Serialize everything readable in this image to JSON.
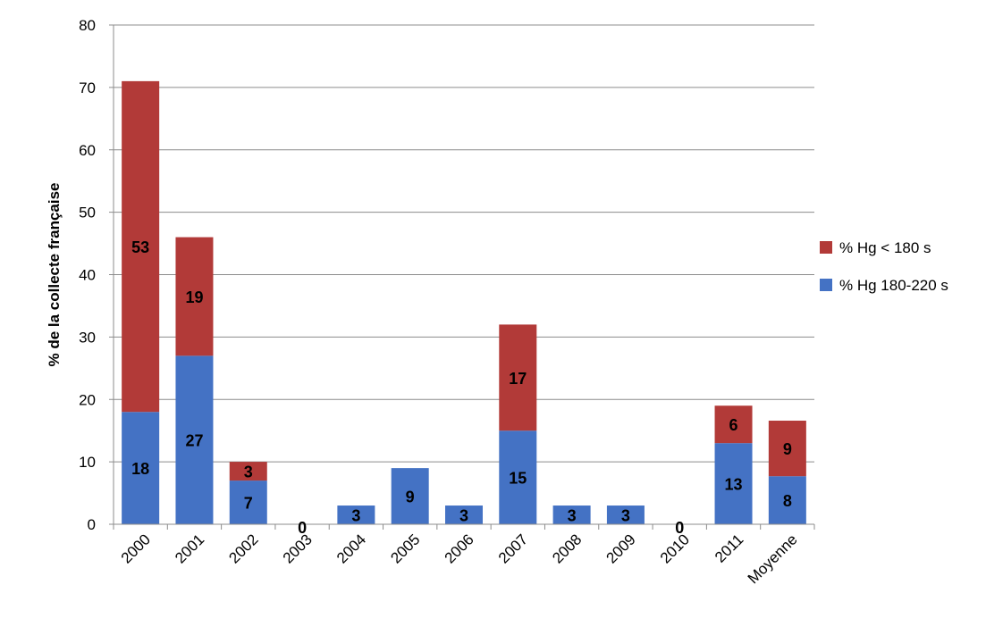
{
  "chart_data": {
    "type": "bar",
    "stacked": true,
    "title": "",
    "xlabel": "",
    "ylabel": "% de la collecte française",
    "ylim": [
      0,
      80
    ],
    "yticks": [
      0,
      10,
      20,
      30,
      40,
      50,
      60,
      70,
      80
    ],
    "grid": true,
    "legend_position": "right",
    "categories": [
      "2000",
      "2001",
      "2002",
      "2003",
      "2004",
      "2005",
      "2006",
      "2007",
      "2008",
      "2009",
      "2010",
      "2011",
      "Moyenne"
    ],
    "series": [
      {
        "name": "% Hg 180-220 s",
        "color": "#4472c4",
        "values": [
          18,
          27,
          7,
          0,
          3,
          9,
          3,
          15,
          3,
          3,
          0,
          13,
          7.7
        ],
        "labels": [
          "18",
          "27",
          "7",
          "0",
          "3",
          "9",
          "3",
          "15",
          "3",
          "3",
          "0",
          "13",
          "8"
        ]
      },
      {
        "name": "% Hg < 180 s",
        "color": "#b23a38",
        "values": [
          53,
          19,
          3,
          0,
          0,
          0,
          0,
          17,
          0,
          0,
          0,
          6,
          8.9
        ],
        "labels": [
          "53",
          "19",
          "3",
          "",
          "",
          "",
          "",
          "17",
          "",
          "",
          "",
          "6",
          "9"
        ]
      }
    ]
  }
}
